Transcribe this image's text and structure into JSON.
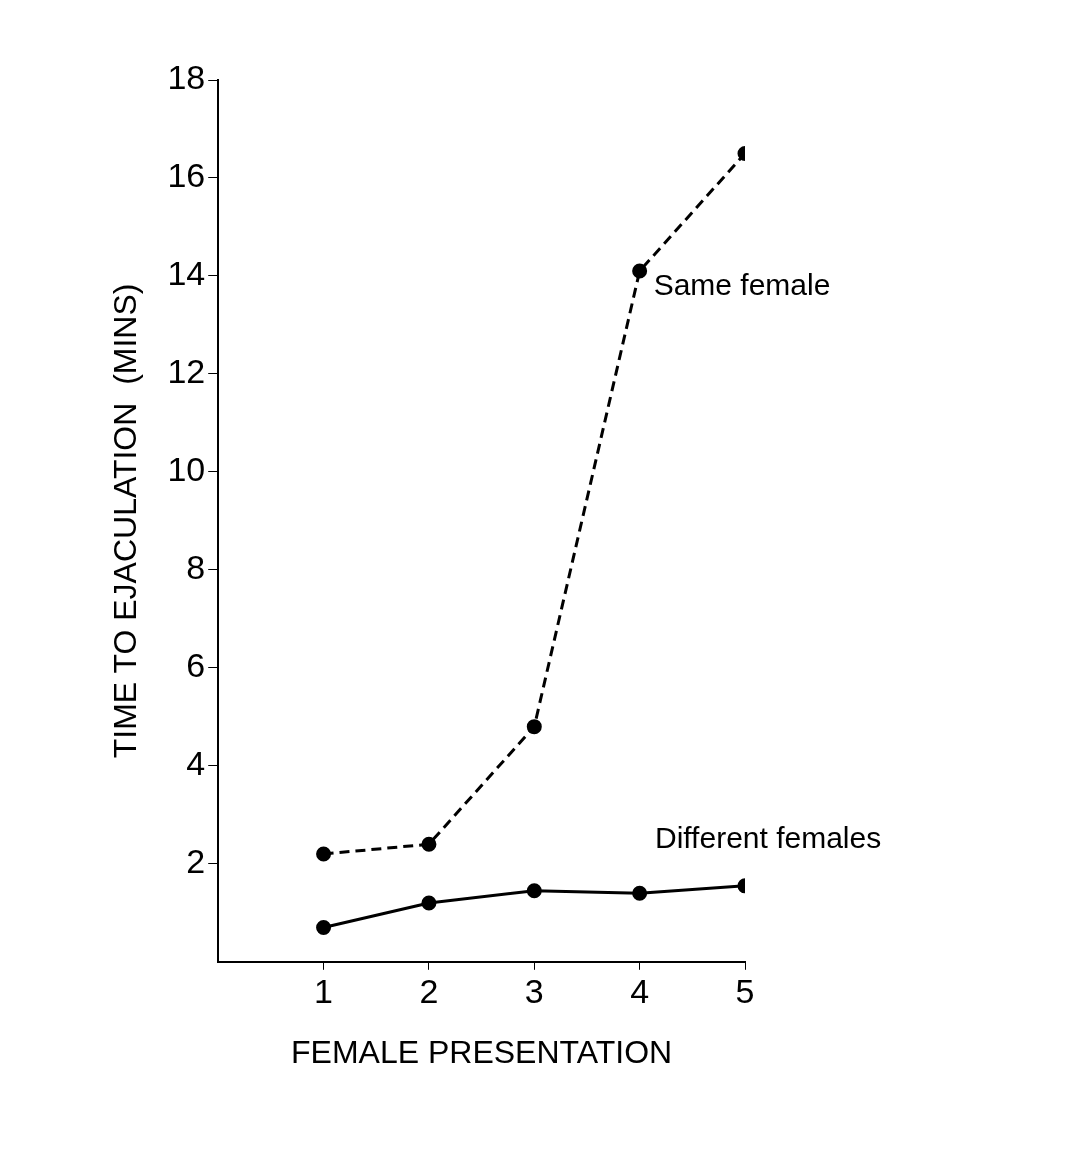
{
  "chart_data": {
    "type": "line",
    "xlabel": "FEMALE PRESENTATION",
    "ylabel": "TIME TO EJACULATION  (MINS)",
    "x": [
      1,
      2,
      3,
      4,
      5
    ],
    "series": [
      {
        "name": "Same female",
        "color": "#000000",
        "line_style": "dashed",
        "values": [
          2.2,
          2.4,
          4.8,
          14.1,
          16.5
        ]
      },
      {
        "name": "Different females",
        "color": "#000000",
        "line_style": "solid",
        "values": [
          0.7,
          1.2,
          1.45,
          1.4,
          1.55
        ]
      }
    ],
    "xlim": [
      0,
      5
    ],
    "xticks": [
      1,
      2,
      3,
      4,
      5
    ],
    "ylim": [
      0,
      18
    ],
    "yticks": [
      2,
      4,
      6,
      8,
      10,
      12,
      14,
      16,
      18
    ],
    "marker": "circle",
    "grid": false,
    "legend": false
  }
}
